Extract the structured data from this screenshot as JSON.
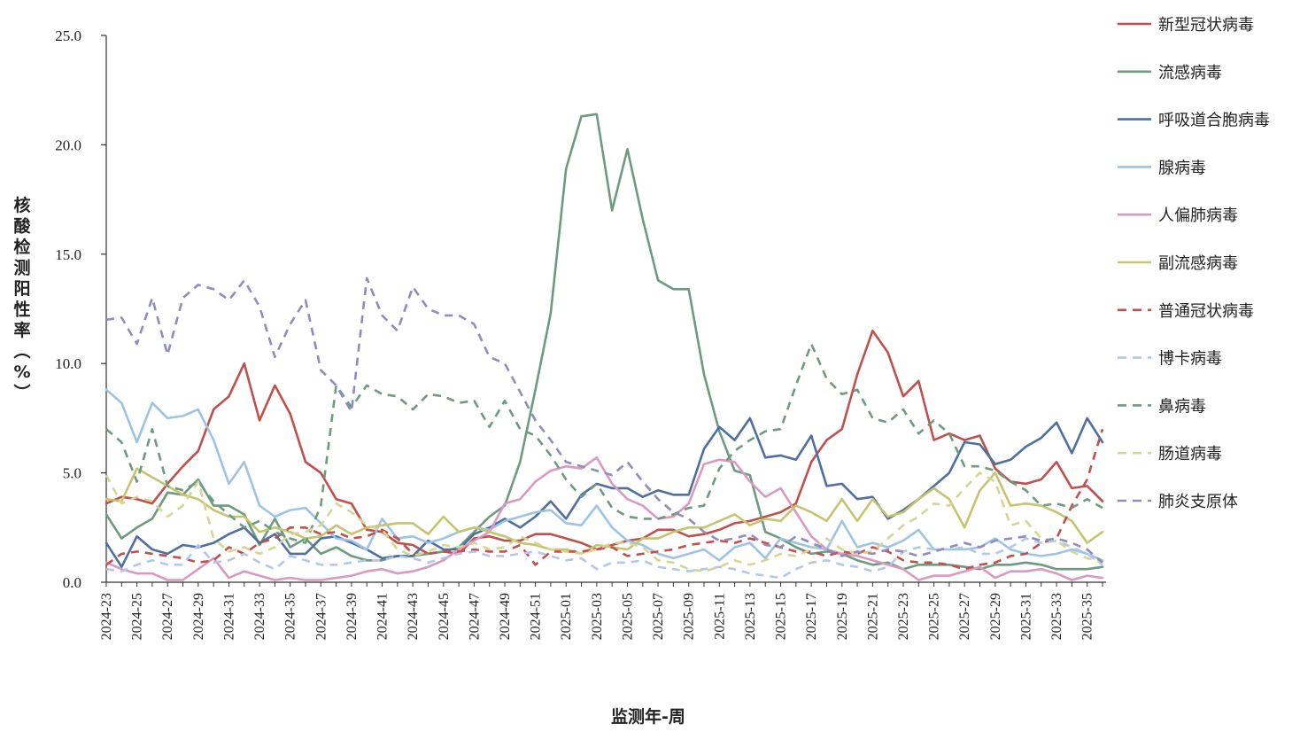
{
  "chart_data": {
    "type": "line",
    "title": "",
    "xlabel": "监测年-周",
    "ylabel": "核酸检测阳性率（%）",
    "ylim": [
      0,
      25
    ],
    "yticks": [
      "0.0",
      "5.0",
      "10.0",
      "15.0",
      "20.0",
      "25.0"
    ],
    "grid": false,
    "legend_position": "right",
    "x": [
      "2024-23",
      "2024-24",
      "2024-25",
      "2024-26",
      "2024-27",
      "2024-28",
      "2024-29",
      "2024-30",
      "2024-31",
      "2024-32",
      "2024-33",
      "2024-34",
      "2024-35",
      "2024-36",
      "2024-37",
      "2024-38",
      "2024-39",
      "2024-40",
      "2024-41",
      "2024-42",
      "2024-43",
      "2024-44",
      "2024-45",
      "2024-46",
      "2024-47",
      "2024-48",
      "2024-49",
      "2024-50",
      "2024-51",
      "2024-52",
      "2025-01",
      "2025-02",
      "2025-03",
      "2025-04",
      "2025-05",
      "2025-06",
      "2025-07",
      "2025-08",
      "2025-09",
      "2025-10",
      "2025-11",
      "2025-12",
      "2025-13",
      "2025-14",
      "2025-15",
      "2025-16",
      "2025-17",
      "2025-18",
      "2025-19",
      "2025-20",
      "2025-21",
      "2025-22",
      "2025-23",
      "2025-24",
      "2025-25",
      "2025-26",
      "2025-27",
      "2025-28",
      "2025-29",
      "2025-30",
      "2025-31",
      "2025-32",
      "2025-33",
      "2025-34",
      "2025-35",
      "2025-36"
    ],
    "xtick_labels": [
      "2024-23",
      "2024-25",
      "2024-27",
      "2024-29",
      "2024-31",
      "2024-33",
      "2024-35",
      "2024-37",
      "2024-39",
      "2024-41",
      "2024-43",
      "2024-45",
      "2024-47",
      "2024-49",
      "2024-51",
      "2025-01",
      "2025-03",
      "2025-05",
      "2025-07",
      "2025-09",
      "2025-11",
      "2025-13",
      "2025-15",
      "2025-17",
      "2025-19",
      "2025-21",
      "2025-23",
      "2025-25",
      "2025-27",
      "2025-29",
      "2025-31",
      "2025-33",
      "2025-35"
    ],
    "series": [
      {
        "name": "新型冠状病毒",
        "color": "#c0504d",
        "dash": false,
        "values": [
          3.6,
          3.9,
          3.8,
          3.6,
          4.5,
          5.3,
          6.0,
          7.9,
          8.5,
          10.0,
          7.4,
          9.0,
          7.7,
          5.5,
          5.0,
          3.8,
          3.6,
          2.4,
          2.3,
          1.8,
          1.7,
          1.3,
          1.4,
          1.3,
          2.0,
          2.1,
          1.9,
          1.9,
          2.2,
          2.2,
          2.0,
          1.8,
          1.5,
          1.7,
          1.9,
          2.0,
          2.4,
          2.4,
          2.1,
          2.2,
          2.4,
          2.7,
          2.8,
          3.0,
          3.2,
          3.6,
          5.5,
          6.5,
          7.0,
          9.5,
          11.5,
          10.5,
          8.5,
          9.2,
          6.5,
          6.8,
          6.5,
          6.7,
          5.2,
          4.6,
          4.5,
          4.7,
          5.5,
          4.3,
          4.4,
          3.7
        ]
      },
      {
        "name": "流感病毒",
        "color": "#6e9b80",
        "dash": false,
        "values": [
          3.1,
          2.0,
          2.5,
          2.9,
          4.1,
          4.0,
          4.7,
          3.5,
          3.5,
          3.1,
          1.7,
          2.9,
          1.6,
          2.0,
          1.3,
          1.6,
          1.2,
          1.0,
          1.0,
          1.2,
          1.2,
          1.3,
          1.4,
          1.6,
          2.3,
          3.0,
          3.5,
          5.5,
          8.8,
          12.3,
          18.9,
          21.3,
          21.4,
          17.0,
          19.8,
          16.6,
          13.8,
          13.4,
          13.4,
          9.5,
          6.9,
          5.1,
          4.9,
          2.3,
          2.0,
          1.6,
          1.3,
          1.4,
          1.3,
          1.0,
          0.8,
          0.9,
          0.6,
          0.8,
          0.8,
          0.8,
          0.7,
          0.6,
          0.8,
          0.8,
          0.9,
          0.8,
          0.6,
          0.6,
          0.6,
          0.7
        ]
      },
      {
        "name": "呼吸道合胞病毒",
        "color": "#4f6fa0",
        "dash": false,
        "values": [
          1.8,
          0.7,
          2.1,
          1.5,
          1.3,
          1.7,
          1.6,
          1.8,
          2.2,
          2.5,
          1.8,
          2.2,
          1.3,
          1.3,
          2.0,
          2.1,
          1.8,
          1.5,
          1.1,
          1.2,
          1.2,
          1.9,
          1.5,
          1.5,
          2.2,
          2.5,
          2.9,
          2.5,
          3.0,
          3.7,
          2.9,
          4.0,
          4.5,
          4.3,
          4.3,
          3.9,
          4.2,
          4.0,
          4.0,
          6.1,
          7.1,
          6.5,
          7.5,
          5.7,
          5.8,
          5.6,
          6.7,
          4.4,
          4.5,
          3.8,
          3.9,
          2.9,
          3.3,
          3.8,
          4.4,
          5.0,
          6.4,
          6.3,
          5.4,
          5.6,
          6.2,
          6.6,
          7.3,
          5.9,
          7.5,
          6.4
        ]
      },
      {
        "name": "腺病毒",
        "color": "#9dc3e6",
        "dash": false,
        "values": [
          8.8,
          8.2,
          6.4,
          8.2,
          7.5,
          7.6,
          7.9,
          6.5,
          4.5,
          5.5,
          3.5,
          3.0,
          3.3,
          3.4,
          2.7,
          2.0,
          1.9,
          1.5,
          2.9,
          2.0,
          2.1,
          1.8,
          2.0,
          2.3,
          2.5,
          2.4,
          2.8,
          3.0,
          3.2,
          3.3,
          2.7,
          2.6,
          3.5,
          2.5,
          1.9,
          1.7,
          1.3,
          1.1,
          1.3,
          1.5,
          1.0,
          1.6,
          1.8,
          1.1,
          2.0,
          1.8,
          1.6,
          1.5,
          2.8,
          1.6,
          1.8,
          1.6,
          1.9,
          2.4,
          1.5,
          1.5,
          1.5,
          1.6,
          2.0,
          1.5,
          1.3,
          1.2,
          1.3,
          1.5,
          1.3,
          1.0
        ]
      },
      {
        "name": "人偏肺病毒",
        "color": "#d99ac2",
        "dash": false,
        "values": [
          0.9,
          0.6,
          0.4,
          0.4,
          0.1,
          0.1,
          0.6,
          1.1,
          0.2,
          0.5,
          0.3,
          0.1,
          0.2,
          0.1,
          0.1,
          0.2,
          0.3,
          0.5,
          0.6,
          0.4,
          0.5,
          0.7,
          1.0,
          1.5,
          1.9,
          2.3,
          3.6,
          3.8,
          4.6,
          5.1,
          5.3,
          5.2,
          5.7,
          4.5,
          3.8,
          3.5,
          2.9,
          3.0,
          3.6,
          5.4,
          5.6,
          5.5,
          4.6,
          3.9,
          4.3,
          3.2,
          2.1,
          1.5,
          1.3,
          1.2,
          1.0,
          0.8,
          0.6,
          0.1,
          0.3,
          0.3,
          0.5,
          0.7,
          0.2,
          0.5,
          0.5,
          0.6,
          0.4,
          0.1,
          0.3,
          0.2
        ]
      },
      {
        "name": "副流感病毒",
        "color": "#c5c46f",
        "dash": false,
        "values": [
          3.8,
          3.7,
          5.2,
          4.8,
          4.4,
          4.0,
          3.8,
          3.3,
          3.0,
          3.0,
          2.3,
          2.5,
          2.3,
          2.0,
          2.1,
          2.6,
          2.2,
          2.5,
          2.6,
          2.7,
          2.7,
          2.2,
          3.0,
          2.3,
          2.5,
          2.3,
          2.1,
          1.8,
          1.7,
          1.5,
          1.5,
          1.3,
          1.7,
          1.6,
          1.5,
          2.0,
          2.0,
          2.3,
          2.5,
          2.5,
          2.8,
          3.1,
          2.6,
          2.9,
          2.8,
          3.5,
          3.2,
          2.8,
          3.8,
          2.8,
          3.8,
          3.0,
          3.2,
          3.8,
          4.3,
          3.8,
          2.5,
          4.2,
          5.0,
          3.5,
          3.6,
          3.5,
          3.2,
          2.8,
          1.8,
          2.3
        ]
      },
      {
        "name": "普通冠状病毒",
        "color": "#c0504d",
        "dash": true,
        "values": [
          0.8,
          1.3,
          1.4,
          1.3,
          1.2,
          1.1,
          0.9,
          1.0,
          1.6,
          1.3,
          1.8,
          2.0,
          2.5,
          2.5,
          2.2,
          2.3,
          2.0,
          2.1,
          2.4,
          2.0,
          1.3,
          1.3,
          1.4,
          1.4,
          1.5,
          1.4,
          1.4,
          1.7,
          0.8,
          1.4,
          1.4,
          1.4,
          1.5,
          1.6,
          1.2,
          1.3,
          1.4,
          1.5,
          1.7,
          1.8,
          1.9,
          1.8,
          2.0,
          1.8,
          1.6,
          1.4,
          1.4,
          1.2,
          1.4,
          1.3,
          1.6,
          1.4,
          1.0,
          0.9,
          0.9,
          0.8,
          0.6,
          0.8,
          0.9,
          1.2,
          1.3,
          1.8,
          2.0,
          3.5,
          4.7,
          7.0
        ]
      },
      {
        "name": "博卡病毒",
        "color": "#b4c7e7",
        "dash": true,
        "values": [
          0.6,
          0.5,
          0.8,
          1.0,
          0.8,
          0.8,
          1.7,
          0.9,
          1.0,
          1.3,
          0.9,
          0.6,
          1.2,
          1.0,
          0.8,
          0.8,
          0.9,
          1.0,
          1.0,
          1.2,
          1.1,
          0.9,
          1.1,
          1.3,
          1.4,
          1.2,
          1.2,
          1.3,
          1.4,
          1.2,
          1.0,
          1.1,
          0.6,
          0.9,
          0.9,
          1.0,
          0.7,
          0.6,
          0.5,
          0.6,
          0.7,
          0.6,
          0.4,
          0.3,
          0.2,
          0.6,
          0.9,
          1.0,
          0.8,
          0.7,
          0.5,
          0.7,
          1.4,
          1.6,
          1.5,
          1.5,
          1.6,
          1.3,
          1.3,
          1.6,
          2.0,
          1.8,
          1.9,
          1.6,
          1.3,
          0.8
        ]
      },
      {
        "name": "鼻病毒",
        "color": "#6e9b80",
        "dash": true,
        "values": [
          7.0,
          6.4,
          4.6,
          7.0,
          4.4,
          4.2,
          4.6,
          3.7,
          3.1,
          2.5,
          2.8,
          2.3,
          2.0,
          1.8,
          3.5,
          9.0,
          8.0,
          9.0,
          8.6,
          8.5,
          7.9,
          8.6,
          8.5,
          8.2,
          8.3,
          7.1,
          8.3,
          7.0,
          6.7,
          5.8,
          4.7,
          3.9,
          4.5,
          3.4,
          3.0,
          2.9,
          2.9,
          3.1,
          3.4,
          3.5,
          5.2,
          6.0,
          6.5,
          6.9,
          7.0,
          9.0,
          10.9,
          9.3,
          8.6,
          8.8,
          7.5,
          7.3,
          7.9,
          6.8,
          7.4,
          6.8,
          5.3,
          5.3,
          5.1,
          4.6,
          4.2,
          3.5,
          3.6,
          3.4,
          3.8,
          3.4
        ]
      },
      {
        "name": "肠道病毒",
        "color": "#d5d694",
        "dash": true,
        "values": [
          4.9,
          3.6,
          3.9,
          3.7,
          3.0,
          3.5,
          4.6,
          2.0,
          1.4,
          1.6,
          1.3,
          1.6,
          2.2,
          2.3,
          2.6,
          3.6,
          3.2,
          2.6,
          2.4,
          1.5,
          1.2,
          1.4,
          1.7,
          1.6,
          1.8,
          1.5,
          1.6,
          2.1,
          1.8,
          1.5,
          1.4,
          1.3,
          1.5,
          1.8,
          1.8,
          1.6,
          1.0,
          0.9,
          0.6,
          0.5,
          0.7,
          1.0,
          0.8,
          1.0,
          1.3,
          1.2,
          1.5,
          2.0,
          1.5,
          1.3,
          1.4,
          2.0,
          2.6,
          3.0,
          3.6,
          3.5,
          4.3,
          5.0,
          4.6,
          2.6,
          2.8,
          2.0,
          1.9,
          1.4,
          1.1,
          0.9
        ]
      },
      {
        "name": "肺炎支原体",
        "color": "#8f8cbf",
        "dash": true,
        "values": [
          12.0,
          12.1,
          10.9,
          13.0,
          10.4,
          13.0,
          13.6,
          13.4,
          12.9,
          13.8,
          12.6,
          10.3,
          11.8,
          12.9,
          9.7,
          9.0,
          7.8,
          13.9,
          12.2,
          11.5,
          13.5,
          12.5,
          12.2,
          12.2,
          11.8,
          10.3,
          10.0,
          8.7,
          7.4,
          6.5,
          5.5,
          5.3,
          5.1,
          4.9,
          5.5,
          4.6,
          3.8,
          3.2,
          2.9,
          2.3,
          1.9,
          2.0,
          2.2,
          1.7,
          1.6,
          2.1,
          1.8,
          1.5,
          1.2,
          1.4,
          1.3,
          1.5,
          1.4,
          1.2,
          1.4,
          1.6,
          1.8,
          1.6,
          1.9,
          2.0,
          2.1,
          1.9,
          2.0,
          1.8,
          1.5,
          0.9
        ]
      }
    ]
  }
}
